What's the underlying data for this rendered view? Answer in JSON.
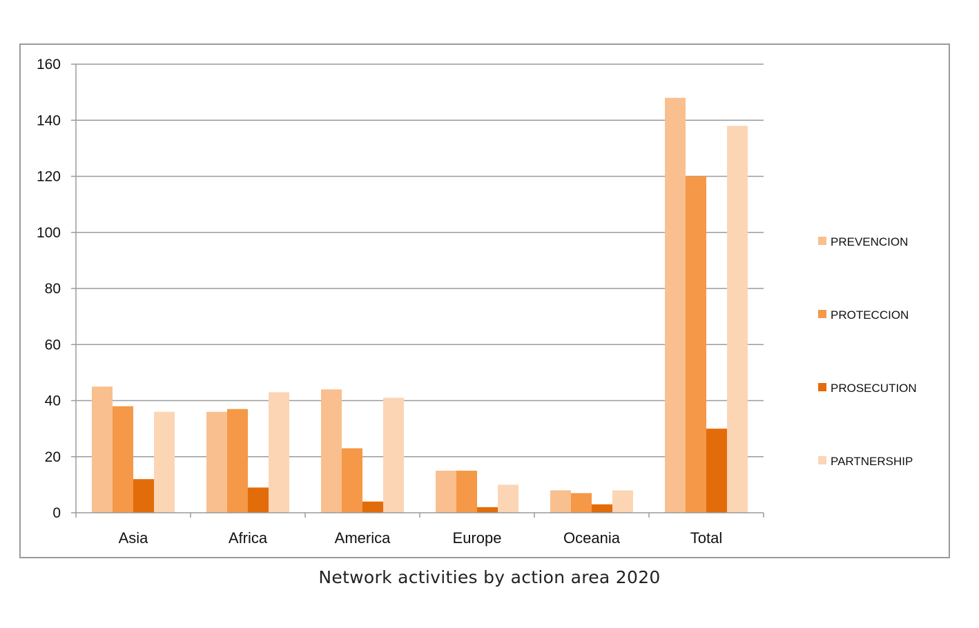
{
  "chart_data": {
    "type": "bar",
    "title": "Network activities by action area 2020",
    "xlabel": "",
    "ylabel": "",
    "categories": [
      "Asia",
      "Africa",
      "America",
      "Europe",
      "Oceania",
      "Total"
    ],
    "series": [
      {
        "name": "PREVENCION",
        "color": "#F9BF8F",
        "values": [
          45,
          36,
          44,
          15,
          8,
          148
        ]
      },
      {
        "name": "PROTECCION",
        "color": "#F59847",
        "values": [
          38,
          37,
          23,
          15,
          7,
          120
        ]
      },
      {
        "name": "PROSECUTION",
        "color": "#E36C0A",
        "values": [
          12,
          9,
          4,
          2,
          3,
          30
        ]
      },
      {
        "name": "PARTNERSHIP",
        "color": "#FCD5B5",
        "values": [
          36,
          43,
          41,
          10,
          8,
          138
        ]
      }
    ],
    "ylim": [
      0,
      160
    ],
    "yticks": [
      0,
      20,
      40,
      60,
      80,
      100,
      120,
      140,
      160
    ],
    "grid": true,
    "legend_position": "right"
  }
}
